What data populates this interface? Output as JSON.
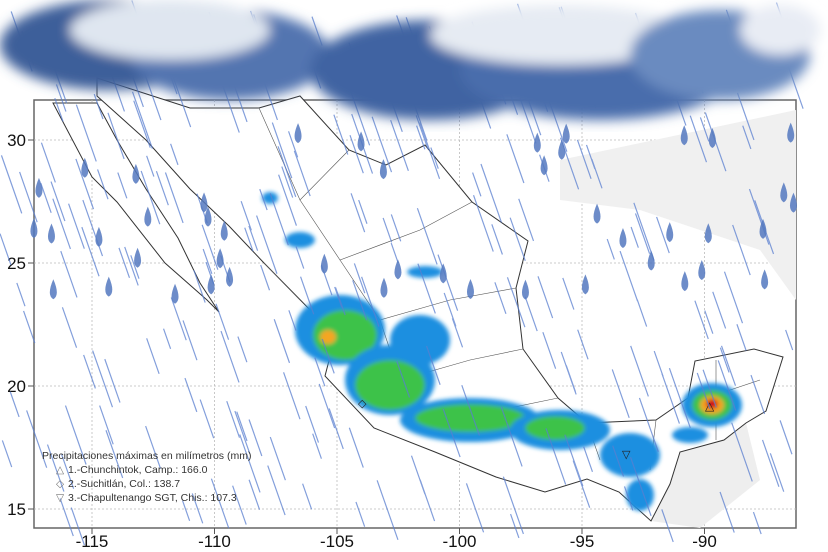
{
  "map": {
    "x_ticks": [
      "-115",
      "-110",
      "-105",
      "-100",
      "-95",
      "-90"
    ],
    "y_ticks": [
      "30",
      "25",
      "20",
      "15"
    ],
    "legend": {
      "title": "Precipitaciones máximas en milímetros (mm)",
      "items": [
        {
          "symbol": "triangle-up-icon",
          "glyph": "△",
          "label": "1.-Chunchintok, Camp.: 166.0"
        },
        {
          "symbol": "diamond-icon",
          "glyph": "◇",
          "label": "2.-Suchitlán, Col.: 138.7"
        },
        {
          "symbol": "triangle-down-icon",
          "glyph": "▽",
          "label": "3.-Chapultenango SGT, Chis.: 107.3"
        }
      ]
    },
    "colors": {
      "light_rain": "#1f8fe0",
      "moderate_rain": "#3cc24a",
      "heavy_rain": "#f5a623",
      "extreme_rain": "#d0021b",
      "land_outline": "#333333",
      "cloud": "#4a6fa8",
      "rain": "#4d74c4"
    }
  }
}
